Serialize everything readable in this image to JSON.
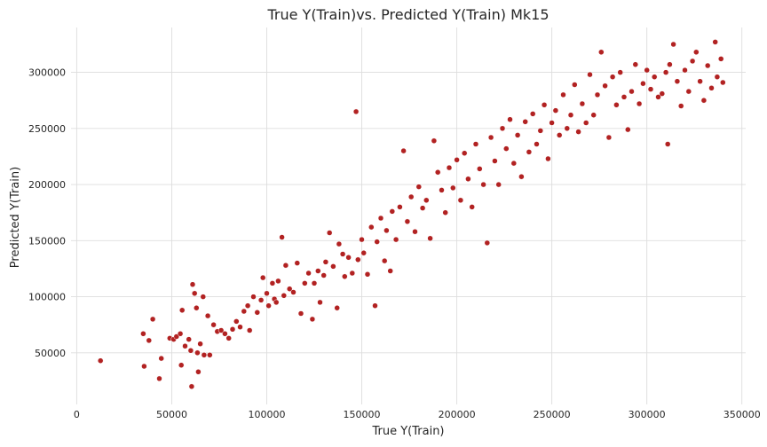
{
  "chart_data": {
    "type": "scatter",
    "title": "True Y(Train)vs. Predicted Y(Train) Mk15",
    "xlabel": "True Y(Train)",
    "ylabel": "Predicted Y(Train)",
    "xlim": [
      -3000,
      352000
    ],
    "ylim": [
      4000,
      340000
    ],
    "xticks": [
      0,
      50000,
      100000,
      150000,
      200000,
      250000,
      300000,
      350000
    ],
    "xtick_labels": [
      "0",
      "50000",
      "100000",
      "150000",
      "200000",
      "250000",
      "300000",
      "350000"
    ],
    "yticks": [
      50000,
      100000,
      150000,
      200000,
      250000,
      300000
    ],
    "ytick_labels": [
      "50000",
      "100000",
      "150000",
      "200000",
      "250000",
      "300000"
    ],
    "grid": true,
    "background": "#ffffff",
    "grid_color": "#dddddd",
    "marker_color": "#b22222",
    "marker_edge_color": "#ffffff",
    "points": [
      [
        12500,
        43000
      ],
      [
        35000,
        67000
      ],
      [
        35500,
        38000
      ],
      [
        38000,
        61000
      ],
      [
        40000,
        80000
      ],
      [
        43500,
        27000
      ],
      [
        44500,
        45000
      ],
      [
        49000,
        63000
      ],
      [
        51000,
        62000
      ],
      [
        52500,
        64500
      ],
      [
        54500,
        67000
      ],
      [
        55000,
        39000
      ],
      [
        55500,
        88000
      ],
      [
        57000,
        56000
      ],
      [
        59000,
        62000
      ],
      [
        60000,
        52000
      ],
      [
        60500,
        20000
      ],
      [
        61000,
        111000
      ],
      [
        62000,
        103000
      ],
      [
        63000,
        90000
      ],
      [
        63500,
        50000
      ],
      [
        64000,
        33000
      ],
      [
        65000,
        58000
      ],
      [
        66500,
        100000
      ],
      [
        67000,
        48000
      ],
      [
        69000,
        83000
      ],
      [
        70000,
        48000
      ],
      [
        72000,
        75000
      ],
      [
        74000,
        69000
      ],
      [
        76000,
        70000
      ],
      [
        78000,
        67000
      ],
      [
        80000,
        63000
      ],
      [
        82000,
        71000
      ],
      [
        84000,
        78000
      ],
      [
        86000,
        73000
      ],
      [
        88000,
        87000
      ],
      [
        90000,
        92000
      ],
      [
        91000,
        70000
      ],
      [
        93000,
        100000
      ],
      [
        95000,
        86000
      ],
      [
        97000,
        97000
      ],
      [
        98000,
        117000
      ],
      [
        100000,
        103000
      ],
      [
        101000,
        92000
      ],
      [
        103000,
        112000
      ],
      [
        104000,
        98000
      ],
      [
        105000,
        95000
      ],
      [
        106000,
        114000
      ],
      [
        108000,
        153000
      ],
      [
        109000,
        101000
      ],
      [
        110000,
        128000
      ],
      [
        112000,
        107000
      ],
      [
        114000,
        104000
      ],
      [
        116000,
        130000
      ],
      [
        118000,
        85000
      ],
      [
        120000,
        112000
      ],
      [
        122000,
        121000
      ],
      [
        124000,
        80000
      ],
      [
        125000,
        112000
      ],
      [
        127000,
        123000
      ],
      [
        128000,
        95000
      ],
      [
        130000,
        119000
      ],
      [
        131000,
        131000
      ],
      [
        133000,
        157000
      ],
      [
        135000,
        127000
      ],
      [
        137000,
        90000
      ],
      [
        138000,
        147000
      ],
      [
        140000,
        138000
      ],
      [
        141000,
        118000
      ],
      [
        143000,
        135000
      ],
      [
        145000,
        121000
      ],
      [
        147000,
        265000
      ],
      [
        148000,
        133000
      ],
      [
        150000,
        151000
      ],
      [
        151000,
        139000
      ],
      [
        153000,
        120000
      ],
      [
        155000,
        162000
      ],
      [
        157000,
        92000
      ],
      [
        158000,
        149000
      ],
      [
        160000,
        170000
      ],
      [
        162000,
        132000
      ],
      [
        163000,
        159000
      ],
      [
        165000,
        123000
      ],
      [
        166000,
        176000
      ],
      [
        168000,
        151000
      ],
      [
        170000,
        180000
      ],
      [
        172000,
        230000
      ],
      [
        174000,
        167000
      ],
      [
        176000,
        189000
      ],
      [
        178000,
        158000
      ],
      [
        180000,
        198000
      ],
      [
        182000,
        179000
      ],
      [
        184000,
        186000
      ],
      [
        186000,
        152000
      ],
      [
        188000,
        239000
      ],
      [
        190000,
        211000
      ],
      [
        192000,
        195000
      ],
      [
        194000,
        175000
      ],
      [
        196000,
        215000
      ],
      [
        198000,
        197000
      ],
      [
        200000,
        222000
      ],
      [
        202000,
        186000
      ],
      [
        204000,
        228000
      ],
      [
        206000,
        205000
      ],
      [
        208000,
        180000
      ],
      [
        210000,
        236000
      ],
      [
        212000,
        214000
      ],
      [
        214000,
        200000
      ],
      [
        216000,
        148000
      ],
      [
        218000,
        242000
      ],
      [
        220000,
        221000
      ],
      [
        222000,
        200000
      ],
      [
        224000,
        250000
      ],
      [
        226000,
        232000
      ],
      [
        228000,
        258000
      ],
      [
        230000,
        219000
      ],
      [
        232000,
        244000
      ],
      [
        234000,
        207000
      ],
      [
        236000,
        256000
      ],
      [
        238000,
        229000
      ],
      [
        240000,
        263000
      ],
      [
        242000,
        236000
      ],
      [
        244000,
        248000
      ],
      [
        246000,
        271000
      ],
      [
        248000,
        223000
      ],
      [
        250000,
        255000
      ],
      [
        252000,
        266000
      ],
      [
        254000,
        244000
      ],
      [
        256000,
        280000
      ],
      [
        258000,
        250000
      ],
      [
        260000,
        262000
      ],
      [
        262000,
        289000
      ],
      [
        264000,
        247000
      ],
      [
        266000,
        272000
      ],
      [
        268000,
        255000
      ],
      [
        270000,
        298000
      ],
      [
        272000,
        262000
      ],
      [
        274000,
        280000
      ],
      [
        276000,
        318000
      ],
      [
        278000,
        288000
      ],
      [
        280000,
        242000
      ],
      [
        282000,
        296000
      ],
      [
        284000,
        271000
      ],
      [
        286000,
        300000
      ],
      [
        288000,
        278000
      ],
      [
        290000,
        249000
      ],
      [
        292000,
        283000
      ],
      [
        294000,
        307000
      ],
      [
        296000,
        272000
      ],
      [
        298000,
        290000
      ],
      [
        300000,
        302000
      ],
      [
        302000,
        285000
      ],
      [
        304000,
        296000
      ],
      [
        306000,
        278000
      ],
      [
        308000,
        281000
      ],
      [
        310000,
        300000
      ],
      [
        311000,
        236000
      ],
      [
        312000,
        307000
      ],
      [
        314000,
        325000
      ],
      [
        316000,
        292000
      ],
      [
        318000,
        270000
      ],
      [
        320000,
        302000
      ],
      [
        322000,
        283000
      ],
      [
        324000,
        310000
      ],
      [
        326000,
        318000
      ],
      [
        328000,
        292000
      ],
      [
        330000,
        275000
      ],
      [
        332000,
        306000
      ],
      [
        334000,
        286000
      ],
      [
        336000,
        327000
      ],
      [
        337000,
        296000
      ],
      [
        339000,
        312000
      ],
      [
        340000,
        291000
      ]
    ]
  }
}
